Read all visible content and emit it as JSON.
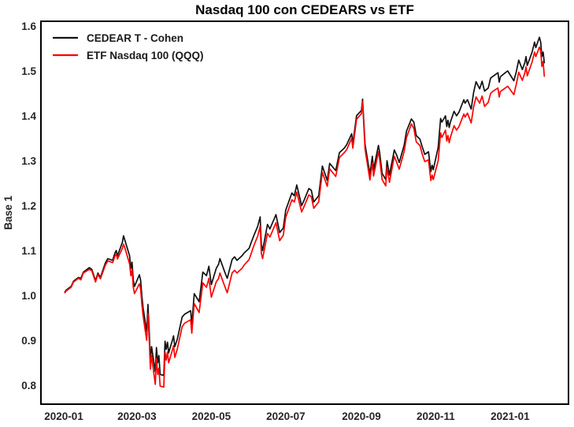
{
  "title": "Nasdaq 100 con CEDEARS vs ETF",
  "y_axis": {
    "label": "Base 1"
  },
  "legend": [
    {
      "label": "CEDEAR T - Cohen",
      "color": "#111111"
    },
    {
      "label": "ETF Nasdaq 100 (QQQ)",
      "color": "#ff0000"
    }
  ],
  "chart_data": {
    "type": "line",
    "title": "Nasdaq 100 con CEDEARS vs ETF",
    "xlabel": "",
    "ylabel": "Base 1",
    "grid": false,
    "legend_position": "upper-left",
    "ylim": [
      0.76,
      1.61
    ],
    "xlim": [
      "2019-12-10",
      "2021-02-15"
    ],
    "y_ticks": [
      0.8,
      0.9,
      1.0,
      1.1,
      1.2,
      1.3,
      1.4,
      1.5,
      1.6
    ],
    "x_ticks": [
      "2020-01",
      "2020-03",
      "2020-05",
      "2020-07",
      "2020-09",
      "2020-11",
      "2021-01"
    ],
    "x": [
      "2020-01-02",
      "2020-01-03",
      "2020-01-07",
      "2020-01-09",
      "2020-01-13",
      "2020-01-15",
      "2020-01-17",
      "2020-01-22",
      "2020-01-24",
      "2020-01-27",
      "2020-01-29",
      "2020-01-31",
      "2020-02-04",
      "2020-02-06",
      "2020-02-10",
      "2020-02-12",
      "2020-02-13",
      "2020-02-14",
      "2020-02-18",
      "2020-02-19",
      "2020-02-20",
      "2020-02-24",
      "2020-02-25",
      "2020-02-26",
      "2020-02-27",
      "2020-02-28",
      "2020-03-03",
      "2020-03-04",
      "2020-03-05",
      "2020-03-06",
      "2020-03-09",
      "2020-03-10",
      "2020-03-11",
      "2020-03-12",
      "2020-03-13",
      "2020-03-16",
      "2020-03-17",
      "2020-03-18",
      "2020-03-19",
      "2020-03-20",
      "2020-03-23",
      "2020-03-24",
      "2020-03-25",
      "2020-03-26",
      "2020-03-27",
      "2020-03-30",
      "2020-03-31",
      "2020-04-01",
      "2020-04-03",
      "2020-04-07",
      "2020-04-09",
      "2020-04-14",
      "2020-04-15",
      "2020-04-17",
      "2020-04-21",
      "2020-04-24",
      "2020-04-27",
      "2020-04-29",
      "2020-05-01",
      "2020-05-05",
      "2020-05-07",
      "2020-05-08",
      "2020-05-12",
      "2020-05-14",
      "2020-05-18",
      "2020-05-20",
      "2020-05-22",
      "2020-05-26",
      "2020-05-28",
      "2020-06-01",
      "2020-06-03",
      "2020-06-05",
      "2020-06-08",
      "2020-06-10",
      "2020-06-11",
      "2020-06-12",
      "2020-06-16",
      "2020-06-18",
      "2020-06-23",
      "2020-06-26",
      "2020-06-29",
      "2020-07-01",
      "2020-07-06",
      "2020-07-08",
      "2020-07-10",
      "2020-07-14",
      "2020-07-16",
      "2020-07-20",
      "2020-07-22",
      "2020-07-24",
      "2020-07-28",
      "2020-07-31",
      "2020-08-04",
      "2020-08-06",
      "2020-08-11",
      "2020-08-14",
      "2020-08-18",
      "2020-08-20",
      "2020-08-24",
      "2020-08-25",
      "2020-08-28",
      "2020-09-01",
      "2020-09-02",
      "2020-09-04",
      "2020-09-08",
      "2020-09-10",
      "2020-09-11",
      "2020-09-15",
      "2020-09-16",
      "2020-09-18",
      "2020-09-21",
      "2020-09-22",
      "2020-09-24",
      "2020-09-28",
      "2020-09-30",
      "2020-10-02",
      "2020-10-06",
      "2020-10-08",
      "2020-10-12",
      "2020-10-14",
      "2020-10-16",
      "2020-10-19",
      "2020-10-21",
      "2020-10-23",
      "2020-10-26",
      "2020-10-28",
      "2020-10-29",
      "2020-10-30",
      "2020-11-03",
      "2020-11-05",
      "2020-11-06",
      "2020-11-09",
      "2020-11-10",
      "2020-11-11",
      "2020-11-12",
      "2020-11-13",
      "2020-11-16",
      "2020-11-18",
      "2020-11-20",
      "2020-11-24",
      "2020-11-25",
      "2020-11-27",
      "2020-11-30",
      "2020-12-02",
      "2020-12-04",
      "2020-12-07",
      "2020-12-09",
      "2020-12-11",
      "2020-12-14",
      "2020-12-16",
      "2020-12-18",
      "2020-12-22",
      "2020-12-23",
      "2020-12-24",
      "2020-12-28",
      "2020-12-30",
      "2021-01-04",
      "2021-01-06",
      "2021-01-08",
      "2021-01-11",
      "2021-01-13",
      "2021-01-14",
      "2021-01-15",
      "2021-01-19",
      "2021-01-21",
      "2021-01-22",
      "2021-01-25",
      "2021-01-26",
      "2021-01-27",
      "2021-01-28",
      "2021-01-29"
    ],
    "series": [
      {
        "name": "CEDEAR T - Cohen",
        "color": "#111111",
        "values": [
          1.008,
          1.012,
          1.02,
          1.032,
          1.04,
          1.038,
          1.052,
          1.062,
          1.058,
          1.033,
          1.05,
          1.04,
          1.072,
          1.082,
          1.078,
          1.095,
          1.1,
          1.088,
          1.118,
          1.133,
          1.124,
          1.088,
          1.06,
          1.074,
          1.034,
          1.02,
          1.046,
          1.034,
          1.0,
          0.973,
          0.92,
          0.98,
          0.926,
          0.856,
          0.886,
          0.83,
          0.884,
          0.85,
          0.866,
          0.824,
          0.822,
          0.898,
          0.88,
          0.896,
          0.872,
          0.9,
          0.91,
          0.886,
          0.902,
          0.952,
          0.958,
          0.966,
          0.936,
          1.004,
          0.986,
          1.052,
          1.044,
          1.065,
          1.024,
          1.06,
          1.07,
          1.082,
          1.052,
          1.038,
          1.08,
          1.086,
          1.078,
          1.088,
          1.095,
          1.105,
          1.12,
          1.134,
          1.154,
          1.175,
          1.115,
          1.1,
          1.158,
          1.148,
          1.18,
          1.14,
          1.15,
          1.19,
          1.228,
          1.222,
          1.246,
          1.2,
          1.212,
          1.238,
          1.234,
          1.208,
          1.222,
          1.288,
          1.256,
          1.294,
          1.278,
          1.318,
          1.328,
          1.336,
          1.36,
          1.338,
          1.4,
          1.412,
          1.437,
          1.337,
          1.27,
          1.31,
          1.28,
          1.334,
          1.318,
          1.272,
          1.258,
          1.3,
          1.268,
          1.324,
          1.312,
          1.296,
          1.334,
          1.366,
          1.393,
          1.386,
          1.356,
          1.348,
          1.33,
          1.314,
          1.32,
          1.276,
          1.29,
          1.28,
          1.33,
          1.394,
          1.386,
          1.4,
          1.376,
          1.39,
          1.374,
          1.386,
          1.41,
          1.4,
          1.408,
          1.436,
          1.428,
          1.436,
          1.415,
          1.452,
          1.476,
          1.46,
          1.477,
          1.455,
          1.462,
          1.484,
          1.488,
          1.496,
          1.475,
          1.487,
          1.496,
          1.5,
          1.478,
          1.498,
          1.524,
          1.503,
          1.518,
          1.532,
          1.512,
          1.542,
          1.564,
          1.552,
          1.575,
          1.564,
          1.532,
          1.542,
          1.518
        ]
      },
      {
        "name": "ETF Nasdaq 100 (QQQ)",
        "color": "#ff0000",
        "values": [
          1.006,
          1.01,
          1.018,
          1.03,
          1.038,
          1.035,
          1.05,
          1.058,
          1.055,
          1.03,
          1.047,
          1.037,
          1.067,
          1.077,
          1.073,
          1.088,
          1.092,
          1.081,
          1.105,
          1.114,
          1.107,
          1.07,
          1.044,
          1.057,
          1.018,
          1.004,
          1.026,
          1.014,
          0.982,
          0.955,
          0.9,
          0.96,
          0.906,
          0.836,
          0.866,
          0.802,
          0.86,
          0.824,
          0.838,
          0.798,
          0.796,
          0.874,
          0.856,
          0.874,
          0.85,
          0.878,
          0.888,
          0.862,
          0.88,
          0.93,
          0.938,
          0.946,
          0.916,
          0.982,
          0.962,
          1.028,
          1.018,
          1.038,
          0.996,
          1.03,
          1.038,
          1.05,
          1.02,
          1.006,
          1.05,
          1.056,
          1.05,
          1.06,
          1.068,
          1.08,
          1.096,
          1.112,
          1.132,
          1.154,
          1.094,
          1.082,
          1.138,
          1.13,
          1.162,
          1.122,
          1.134,
          1.174,
          1.213,
          1.208,
          1.23,
          1.186,
          1.198,
          1.224,
          1.22,
          1.194,
          1.208,
          1.274,
          1.243,
          1.282,
          1.265,
          1.307,
          1.318,
          1.325,
          1.35,
          1.328,
          1.392,
          1.405,
          1.432,
          1.326,
          1.257,
          1.296,
          1.266,
          1.32,
          1.303,
          1.258,
          1.244,
          1.286,
          1.252,
          1.31,
          1.296,
          1.281,
          1.32,
          1.352,
          1.382,
          1.372,
          1.342,
          1.334,
          1.314,
          1.298,
          1.302,
          1.256,
          1.268,
          1.258,
          1.3,
          1.362,
          1.352,
          1.368,
          1.344,
          1.356,
          1.34,
          1.352,
          1.378,
          1.368,
          1.376,
          1.404,
          1.397,
          1.406,
          1.384,
          1.42,
          1.442,
          1.428,
          1.444,
          1.421,
          1.43,
          1.45,
          1.455,
          1.462,
          1.442,
          1.454,
          1.462,
          1.466,
          1.447,
          1.47,
          1.497,
          1.479,
          1.495,
          1.509,
          1.489,
          1.52,
          1.542,
          1.532,
          1.553,
          1.545,
          1.51,
          1.521,
          1.488
        ]
      }
    ]
  }
}
